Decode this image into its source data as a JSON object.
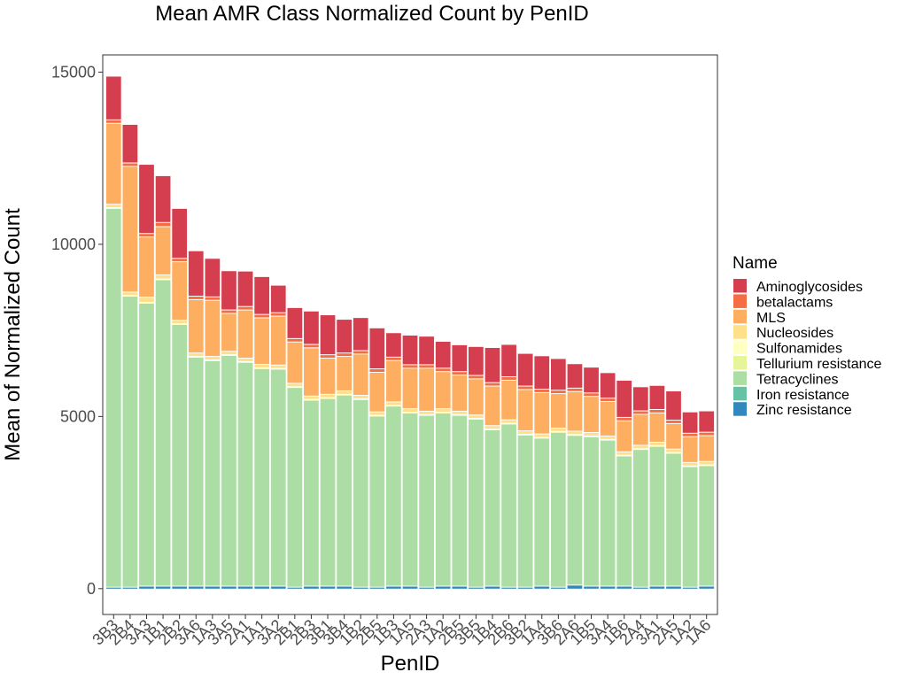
{
  "chart_data": {
    "type": "bar",
    "stacked": true,
    "title": "Mean AMR Class Normalized Count by PenID",
    "xlabel": "PenID",
    "ylabel": "Mean of Normalized Count",
    "ylim": [
      -750,
      15500
    ],
    "yticks": [
      0,
      5000,
      10000,
      15000
    ],
    "ytick_labels": [
      "0",
      "5000",
      "10000",
      "15000"
    ],
    "grid": false,
    "legend": {
      "title": "Name",
      "position": "right"
    },
    "categories": [
      "3B3",
      "2B4",
      "3A3",
      "1B1",
      "2B2",
      "3A6",
      "1A3",
      "3A5",
      "2A1",
      "1A1",
      "3A2",
      "2B1",
      "2B3",
      "3B1",
      "3B4",
      "1B2",
      "2B5",
      "1B3",
      "1A5",
      "2A3",
      "1A2",
      "2B5",
      "3B5",
      "1B4",
      "2B6",
      "3B2",
      "1A4",
      "3B6",
      "2A6",
      "1B5",
      "3A4",
      "1B6",
      "2A4",
      "3A1",
      "2A5",
      "1A2",
      "1A6"
    ],
    "series": [
      {
        "name": "Zinc resistance",
        "color": "#3288bd",
        "values": [
          30,
          30,
          60,
          60,
          60,
          60,
          60,
          60,
          60,
          60,
          60,
          30,
          60,
          60,
          60,
          30,
          30,
          60,
          60,
          30,
          60,
          60,
          30,
          60,
          30,
          30,
          60,
          30,
          90,
          60,
          60,
          60,
          30,
          60,
          60,
          30,
          60
        ]
      },
      {
        "name": "Iron resistance",
        "color": "#66c2a5",
        "values": [
          0,
          0,
          0,
          0,
          0,
          0,
          0,
          0,
          0,
          0,
          0,
          0,
          0,
          0,
          0,
          0,
          0,
          0,
          0,
          0,
          0,
          0,
          0,
          0,
          0,
          0,
          0,
          0,
          0,
          0,
          0,
          0,
          0,
          0,
          0,
          0,
          0
        ]
      },
      {
        "name": "Tetracyclines",
        "color": "#abdda4",
        "values": [
          11000,
          8450,
          8220,
          8900,
          7600,
          6650,
          6550,
          6700,
          6500,
          6320,
          6300,
          5800,
          5400,
          5450,
          5550,
          5450,
          4970,
          5230,
          5030,
          4990,
          5030,
          4960,
          4880,
          4540,
          4740,
          4420,
          4300,
          4500,
          4350,
          4340,
          4240,
          3780,
          4000,
          4060,
          3860,
          3500,
          3500
        ]
      },
      {
        "name": "Tellurium resistance",
        "color": "#e6f598",
        "values": [
          0,
          0,
          0,
          0,
          0,
          0,
          0,
          0,
          0,
          0,
          0,
          0,
          0,
          0,
          0,
          0,
          0,
          0,
          0,
          0,
          0,
          0,
          0,
          0,
          0,
          0,
          0,
          0,
          0,
          0,
          0,
          0,
          0,
          0,
          0,
          0,
          0
        ]
      },
      {
        "name": "Sulfonamides",
        "color": "#ffffbf",
        "values": [
          20,
          20,
          20,
          20,
          20,
          20,
          20,
          20,
          20,
          20,
          20,
          20,
          20,
          20,
          20,
          20,
          20,
          20,
          20,
          20,
          20,
          20,
          20,
          20,
          20,
          20,
          20,
          20,
          20,
          20,
          20,
          20,
          20,
          20,
          20,
          20,
          20
        ]
      },
      {
        "name": "Nucleosides",
        "color": "#fee08b",
        "values": [
          100,
          100,
          150,
          120,
          100,
          100,
          100,
          100,
          100,
          100,
          100,
          100,
          100,
          100,
          100,
          100,
          100,
          100,
          100,
          100,
          100,
          100,
          100,
          100,
          100,
          100,
          100,
          100,
          100,
          100,
          100,
          100,
          100,
          100,
          100,
          100,
          100
        ]
      },
      {
        "name": "MLS",
        "color": "#fdae61",
        "values": [
          2350,
          3650,
          1750,
          1400,
          1700,
          1550,
          1630,
          1100,
          1400,
          1350,
          1420,
          1200,
          1400,
          1050,
          1000,
          1200,
          1150,
          1200,
          1180,
          1250,
          1080,
          1050,
          1050,
          1150,
          1150,
          1200,
          1200,
          1000,
          1150,
          1050,
          1000,
          900,
          900,
          850,
          740,
          750,
          750
        ]
      },
      {
        "name": "betalactams",
        "color": "#f46d43",
        "values": [
          100,
          100,
          100,
          120,
          100,
          100,
          100,
          100,
          100,
          100,
          100,
          100,
          100,
          100,
          100,
          100,
          100,
          100,
          100,
          100,
          100,
          100,
          100,
          100,
          100,
          100,
          100,
          100,
          100,
          100,
          100,
          100,
          100,
          100,
          100,
          100,
          100
        ]
      },
      {
        "name": "Aminoglycosides",
        "color": "#d53e4f",
        "values": [
          1270,
          1120,
          2010,
          1360,
          1450,
          1320,
          1120,
          1140,
          1030,
          1100,
          800,
          900,
          970,
          1160,
          980,
          960,
          1190,
          710,
          860,
          830,
          780,
          780,
          840,
          1020,
          940,
          950,
          970,
          920,
          710,
          750,
          740,
          1080,
          700,
          700,
          850,
          620,
          620
        ]
      }
    ]
  }
}
